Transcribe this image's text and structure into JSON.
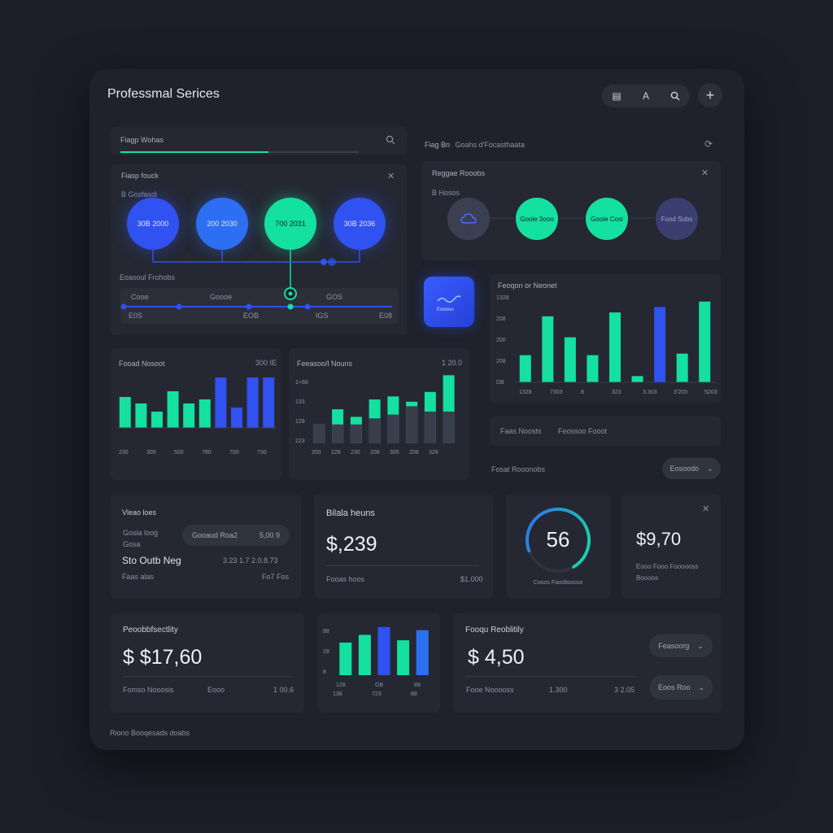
{
  "colors": {
    "green": "#14e0a0",
    "blue": "#2f52f0",
    "blue_mid": "#2d6ff2",
    "bg": "#1b1e28",
    "card": "#252833"
  },
  "header": {
    "title": "Professmal Serices",
    "icons": [
      "list-icon",
      "font-icon",
      "search-icon",
      "plus-icon"
    ]
  },
  "search": {
    "placeholder": "Fiagp Wohas",
    "progress": 0.62
  },
  "top_right": {
    "label": "Fiag Bn",
    "sublabel": "Goahs d'Focasthaata"
  },
  "flow": {
    "title": "Fiasp fouck",
    "subtitle": "B Gosfasdi",
    "nodes": [
      "30B 2000",
      "200 2030",
      "700 2031",
      "30B 2036"
    ],
    "section": "Eoasoul Frohobs",
    "timeline": {
      "labels": [
        "Cooe",
        "Goooe",
        "GOS"
      ],
      "ticks": [
        "E0S",
        "EOB",
        "IGS",
        "E08"
      ]
    }
  },
  "status_panel": {
    "title": "Reggae Rooobs",
    "subtitle": "B Hosos",
    "nodes": [
      {
        "label": "",
        "icon": "cloud-icon"
      },
      {
        "label": "Gooie 3ooo"
      },
      {
        "label": "Gooie Cosi"
      },
      {
        "label": "Food Subs"
      }
    ]
  },
  "app_tile": {
    "label": "Eooooo"
  },
  "chart_right": {
    "title": "Feoqon or Neonet",
    "chart_data": {
      "type": "bar",
      "y_ticks": [
        "1328",
        "208",
        "200",
        "208",
        "DB"
      ],
      "x_ticks": [
        "1328",
        "7303",
        "8",
        "323",
        "3.303",
        "3'203",
        "5203"
      ],
      "values": [
        35,
        85,
        58,
        35,
        90,
        8,
        97,
        37,
        104
      ],
      "colors": [
        "green",
        "green",
        "green",
        "green",
        "green",
        "green",
        "blue",
        "green",
        "green"
      ],
      "ylim": [
        0,
        110
      ]
    }
  },
  "info_row": {
    "left": "Faas Noosts",
    "right": "Feossoo Fooot"
  },
  "select_row": {
    "label": "Fosat Rooonobs",
    "button": "Eosoodo"
  },
  "chart_left": {
    "title": "Fooad Nosoot",
    "corner": "300 IE",
    "chart_data": {
      "type": "bar",
      "x_ticks": [
        "230",
        "300",
        "500",
        "780",
        "700",
        "730"
      ],
      "values": [
        38,
        30,
        20,
        45,
        30,
        35,
        62,
        25,
        62,
        62
      ],
      "colors": [
        "green",
        "green",
        "green",
        "green",
        "green",
        "green",
        "blue",
        "blue",
        "blue",
        "blue"
      ],
      "ylim": [
        0,
        70
      ]
    }
  },
  "chart_mid": {
    "title": "Feeasoo/l Nouns",
    "corner": "1 20.0",
    "chart_data": {
      "type": "bar",
      "y_ticks": [
        "1+88",
        "133",
        "128",
        "223"
      ],
      "x_ticks": [
        "200",
        "228",
        "230",
        "208",
        "305",
        "208",
        "328"
      ],
      "series": [
        {
          "name": "",
          "values": [
            25,
            45,
            35,
            58,
            62,
            55,
            68,
            90
          ]
        },
        {
          "name": "",
          "values": [
            25,
            25,
            25,
            33,
            38,
            49,
            42,
            42
          ]
        }
      ],
      "ylim": [
        0,
        100
      ]
    }
  },
  "card_view": {
    "title": "Vleao loes",
    "label1": "Gosia loog",
    "label2": "Gosa",
    "pill": "Gooaud Roa2",
    "pill_value": "5,00 9",
    "name": "Sto Outb Neg",
    "name_value": "3.23 1.7 2.0.8.73",
    "foot_left": "Faas alas",
    "foot_right": "Fo7 Fos"
  },
  "card_bilala": {
    "title": "Bilala heuns",
    "amount": "$,239",
    "foot_left": "Fooas hoos",
    "foot_right": "$1.000"
  },
  "gauge": {
    "value": "56",
    "label": "Cooos Fiaodtoooso",
    "fraction": 0.72
  },
  "card_9970": {
    "amount": "$9,70",
    "line1": "Eooo Fooo Foooooss",
    "line2": "Boooos"
  },
  "card_prob": {
    "title": "Peoobbfsectlity",
    "amount": "$ $17,60",
    "foot_left": "Fomso Nooosis",
    "foot_mid": "Eooo",
    "foot_right": "1 00.6"
  },
  "chart_small": {
    "chart_data": {
      "type": "bar",
      "y_ticks": [
        "88",
        "28",
        "8"
      ],
      "x_ticks_top": [
        "128",
        "GB",
        "89"
      ],
      "x_ticks_bottom": [
        "138",
        "723",
        "88"
      ],
      "values": [
        42,
        52,
        62,
        45,
        58
      ],
      "colors": [
        "green",
        "green",
        "blue",
        "green",
        "blue_mid"
      ],
      "ylim": [
        0,
        65
      ]
    }
  },
  "card_fogu": {
    "title": "Fooqu Reoblitily",
    "amount": "$ 4,50",
    "foot_left": "Fooe Nooooss",
    "foot_mid": "1.300",
    "foot_right": "3 2.05",
    "button1": "Feasoorg",
    "button2": "Eoos Roo"
  },
  "footer": {
    "text": "Riono Booqesads doabs"
  }
}
